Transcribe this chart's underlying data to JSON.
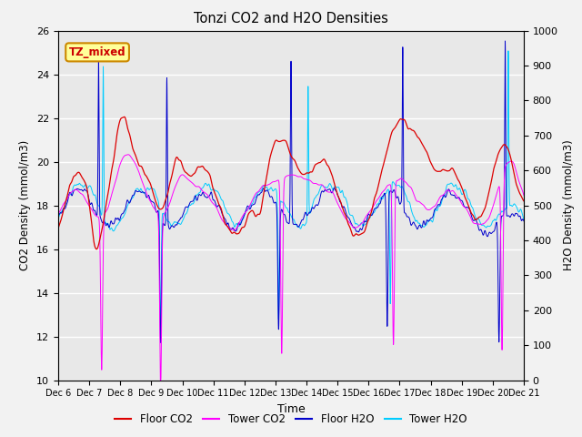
{
  "title": "Tonzi CO2 and H2O Densities",
  "xlabel": "Time",
  "ylabel_left": "CO2 Density (mmol/m3)",
  "ylabel_right": "H2O Density (mmol/m3)",
  "ylim_left": [
    10,
    26
  ],
  "ylim_right": [
    0,
    1000
  ],
  "annotation_text": "TZ_mixed",
  "annotation_color": "#cc0000",
  "annotation_bg": "#ffff99",
  "annotation_border": "#cc8800",
  "x_tick_labels": [
    "Dec 6",
    "Dec 7",
    "Dec 8",
    "Dec 9",
    "Dec 10",
    "Dec 11",
    "Dec 12",
    "Dec 13",
    "Dec 14",
    "Dec 15",
    "Dec 16",
    "Dec 17",
    "Dec 18",
    "Dec 19",
    "Dec 20",
    "Dec 21"
  ],
  "legend_entries": [
    "Floor CO2",
    "Tower CO2",
    "Floor H2O",
    "Tower H2O"
  ],
  "colors": {
    "floor_co2": "#dd0000",
    "tower_co2": "#ff00ff",
    "floor_h2o": "#0000cc",
    "tower_h2o": "#00ccff"
  },
  "bg_color": "#e8e8e8",
  "fig_color": "#f2f2f2",
  "grid_color": "#ffffff",
  "n_points": 3000,
  "seed": 42
}
